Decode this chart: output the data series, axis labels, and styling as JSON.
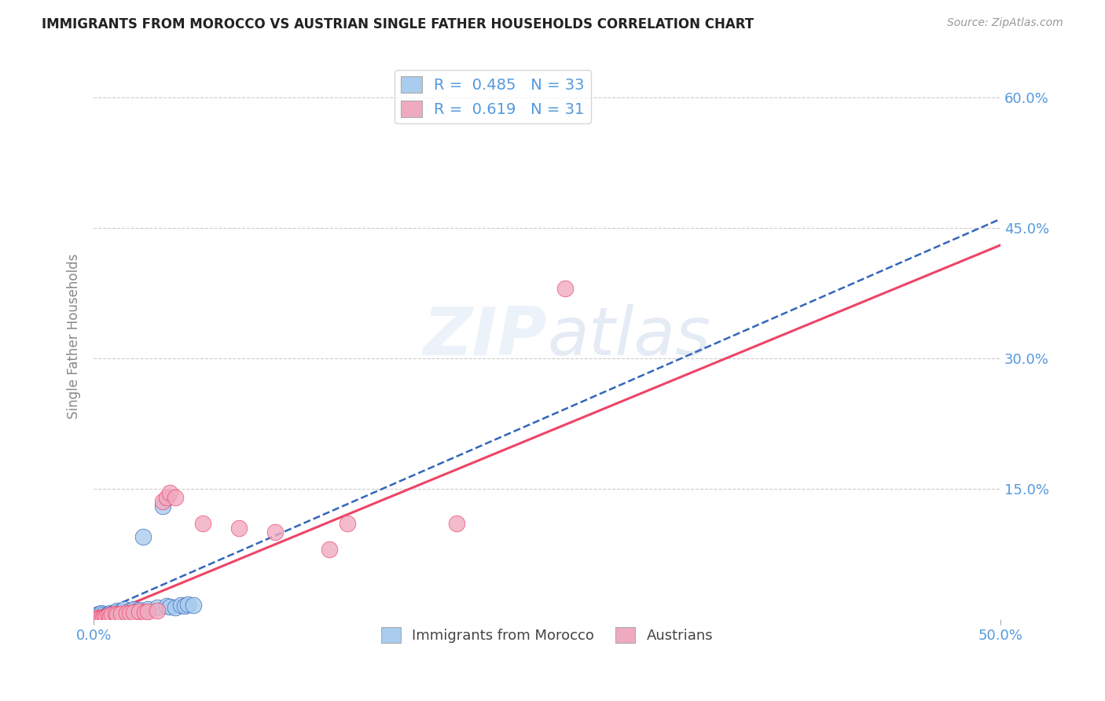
{
  "title": "IMMIGRANTS FROM MOROCCO VS AUSTRIAN SINGLE FATHER HOUSEHOLDS CORRELATION CHART",
  "source_text": "Source: ZipAtlas.com",
  "ylabel": "Single Father Households",
  "xlim": [
    0.0,
    0.5
  ],
  "ylim": [
    0.0,
    0.65
  ],
  "xtick_positions": [
    0.0,
    0.5
  ],
  "xtick_labels": [
    "0.0%",
    "50.0%"
  ],
  "ytick_positions": [
    0.15,
    0.3,
    0.45,
    0.6
  ],
  "ytick_labels": [
    "15.0%",
    "30.0%",
    "45.0%",
    "60.0%"
  ],
  "grid_color": "#cccccc",
  "background_color": "#ffffff",
  "title_color": "#222222",
  "watermark_text": "ZIPatlas",
  "blue_color": "#aaccee",
  "pink_color": "#f0aac0",
  "blue_line_color": "#3366bb",
  "pink_line_color": "#ee4466",
  "label_color": "#5599dd",
  "blue_line_x": [
    0.0,
    0.5
  ],
  "blue_line_y": [
    0.005,
    0.46
  ],
  "pink_line_x": [
    0.0,
    0.5
  ],
  "pink_line_y": [
    0.0,
    0.43
  ],
  "blue_scatter_x": [
    0.001,
    0.001,
    0.002,
    0.002,
    0.003,
    0.003,
    0.004,
    0.004,
    0.005,
    0.005,
    0.006,
    0.007,
    0.008,
    0.009,
    0.01,
    0.012,
    0.013,
    0.015,
    0.017,
    0.02,
    0.022,
    0.025,
    0.027,
    0.03,
    0.035,
    0.038,
    0.04,
    0.042,
    0.045,
    0.048,
    0.05,
    0.052,
    0.055
  ],
  "blue_scatter_y": [
    0.002,
    0.004,
    0.002,
    0.005,
    0.001,
    0.006,
    0.003,
    0.007,
    0.002,
    0.005,
    0.003,
    0.004,
    0.005,
    0.007,
    0.006,
    0.008,
    0.01,
    0.009,
    0.012,
    0.01,
    0.012,
    0.011,
    0.095,
    0.012,
    0.013,
    0.13,
    0.015,
    0.014,
    0.013,
    0.016,
    0.015,
    0.017,
    0.016
  ],
  "pink_scatter_x": [
    0.001,
    0.002,
    0.003,
    0.004,
    0.005,
    0.006,
    0.007,
    0.008,
    0.009,
    0.01,
    0.012,
    0.013,
    0.015,
    0.018,
    0.02,
    0.022,
    0.025,
    0.028,
    0.03,
    0.035,
    0.038,
    0.04,
    0.042,
    0.045,
    0.06,
    0.08,
    0.1,
    0.13,
    0.14,
    0.2,
    0.26
  ],
  "pink_scatter_y": [
    0.001,
    0.002,
    0.001,
    0.002,
    0.002,
    0.003,
    0.003,
    0.004,
    0.003,
    0.005,
    0.006,
    0.005,
    0.006,
    0.007,
    0.007,
    0.008,
    0.009,
    0.008,
    0.009,
    0.01,
    0.135,
    0.14,
    0.145,
    0.14,
    0.11,
    0.105,
    0.1,
    0.08,
    0.11,
    0.11,
    0.38
  ]
}
